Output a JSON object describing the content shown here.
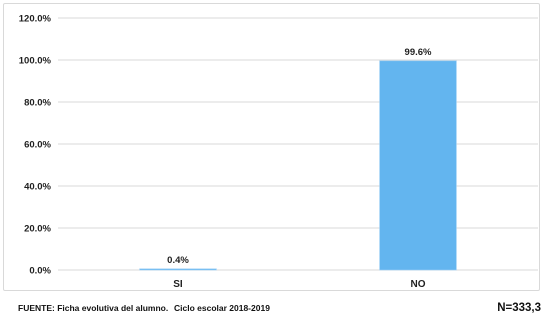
{
  "chart_data": {
    "type": "bar",
    "categories": [
      "SI",
      "NO"
    ],
    "values": [
      0.4,
      99.6
    ],
    "data_labels": [
      "0.4%",
      "99.6%"
    ],
    "ylim": [
      0,
      120
    ],
    "yticks": [
      0,
      20,
      40,
      60,
      80,
      100,
      120
    ],
    "ytick_labels": [
      "0.0%",
      "20.0%",
      "40.0%",
      "60.0%",
      "80.0%",
      "100.0%",
      "120.0%"
    ],
    "grid": true,
    "bar_color": "#63b5ef",
    "title": "",
    "xlabel": "",
    "ylabel": ""
  },
  "footer": {
    "source": "FUENTE: Ficha evolutiva del alumno.",
    "cycle": "Ciclo escolar 2018-2019",
    "n": "N=333,3"
  }
}
